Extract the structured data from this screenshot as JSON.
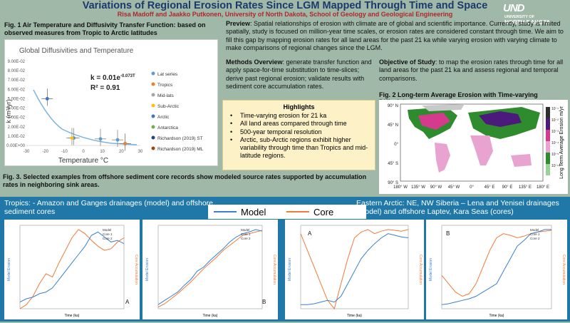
{
  "header": {
    "title": "Variations of Regional Erosion Rates Since LGM Mapped Through Time and Space",
    "authors": "Risa Madoff and Jaakko Putkonen, University of North Dakota, School of Geology and Geological Engineering",
    "logo_main": "UND",
    "logo_sub1": "UNIVERSITY OF",
    "logo_sub2": "NORTH DAKOTA"
  },
  "fig1": {
    "caption": "Fig. 1 Air Temperature and Diffusivity Transfer Function: based on observed measures from Tropic to Arctic latitudes",
    "chart_title": "Global Diffusivities and Temperature",
    "equation": "k = 0.01e",
    "equation_exp": "-0.073T",
    "r2": "R² = 0.91",
    "ylabel": "k (m²/yr)",
    "xlabel": "Temperature  °C",
    "yticks": [
      "0.00E+00",
      "1.00E-02",
      "2.00E-02",
      "3.00E-02",
      "4.00E-02",
      "5.00E-02",
      "6.00E-02",
      "7.00E-02",
      "8.00E-02",
      "9.00E-02"
    ],
    "xticks": [
      "-30",
      "-20",
      "-10",
      "0",
      "10",
      "20",
      "30"
    ],
    "legend": [
      {
        "label": "Lat series",
        "color": "#5b9bd5"
      },
      {
        "label": "Tropics",
        "color": "#ed7d31"
      },
      {
        "label": "Mid-lats",
        "color": "#a5a5a5"
      },
      {
        "label": "Sub-Arctic",
        "color": "#ffc000"
      },
      {
        "label": "Arctic",
        "color": "#4472c4"
      },
      {
        "label": "Antarctica",
        "color": "#70ad47"
      },
      {
        "label": "Richardson (2019) ST",
        "color": "#264478"
      },
      {
        "label": "Richardson (2019) ML",
        "color": "#9e480e"
      }
    ]
  },
  "chart_data": [
    {
      "type": "scatter",
      "title": "Global Diffusivities and Temperature",
      "xlabel": "Temperature  °C",
      "ylabel": "k (m²/yr)",
      "xlim": [
        -30,
        30
      ],
      "ylim": [
        0,
        0.09
      ],
      "series": [
        {
          "name": "Lat series",
          "x": [
            -19,
            -5,
            9,
            18,
            22
          ],
          "y": [
            0.05,
            0.008,
            0.007,
            0.006,
            0.002
          ]
        },
        {
          "name": "Tropics",
          "x": [
            22
          ],
          "y": [
            0.002
          ]
        },
        {
          "name": "Sub-Arctic",
          "x": [
            -6
          ],
          "y": [
            0.008
          ]
        },
        {
          "name": "Arctic",
          "x": [
            -19
          ],
          "y": [
            0.05
          ]
        }
      ]
    }
  ],
  "preview": {
    "label": "Preview",
    "text": ": Spatial relationships of erosion with climate are of global and scientific importance. Currently, study is limited spatially, study is focused on million-year time scales, or erosion rates are considered constant through time. We aim to fill this gap by mapping erosion rates for all land areas for the past 21 ka while varying erosion with varying climate to make comparisons of regional changes since the LGM."
  },
  "methods": {
    "label": "Methods Overview",
    "text": ": generate transfer function and apply space-for-time substitution to time-slices; derive past regional erosion; validate results with sediment core accumulation rates."
  },
  "highlights": {
    "title": "Highlights",
    "items": [
      "Time-varying erosion for 21 ka",
      "All land areas compared through time",
      "500-year temporal resolution",
      "Arctic, sub-Arctic regions exhibit higher variability through time than Tropics and mid-latitude regions."
    ]
  },
  "objective": {
    "label": "Objective of Study",
    "text": ": to map the erosion rates through time for all land areas for the past 21 ka and assess regional and temporal comparisons."
  },
  "fig2": {
    "caption": "Fig. 2 Long-term Average Erosion with Time-varying Diffusivity",
    "lat_labels": [
      "90° N",
      "45° N",
      "0°",
      "45° S",
      "90° S"
    ],
    "lon_labels": [
      "180° W",
      "135° W",
      "90° W",
      "45° W",
      "0°",
      "45° E",
      "90° E",
      "135° E",
      "180° E"
    ],
    "colorbar_label": "Long Term Average Erosion m/yr",
    "colorbar_ticks": [
      "10⁻¹",
      "10⁻²",
      "10⁻³",
      "10⁻⁴",
      "10⁻⁵",
      "10⁻⁶"
    ]
  },
  "fig3": {
    "caption": "Fig. 3. Selected examples from offshore sediment core records show modeled source rates supported by accumulation rates in neighboring sink areas."
  },
  "bottom": {
    "left_title": "Tropics:  - Amazon and Ganges drainages (model) and offshore sediment cores",
    "right_title": "Eastern Arctic: NE, NW Siberia – Lena and Yenisei  drainages (model) and offshore Laptev, Kara Seas (cores)",
    "legend_model": "Model",
    "legend_core": "Core",
    "model_color": "#3a7fd0",
    "core_color": "#f07a3a",
    "panel_labels": [
      "A",
      "B",
      "A",
      "B"
    ],
    "ylabel_model": "Model Erosion",
    "ylabel_core": "Core Accumulation",
    "xlabel": "Time (ka)",
    "inline_legend": [
      "Model",
      "Core 1",
      "Core 2"
    ]
  }
}
